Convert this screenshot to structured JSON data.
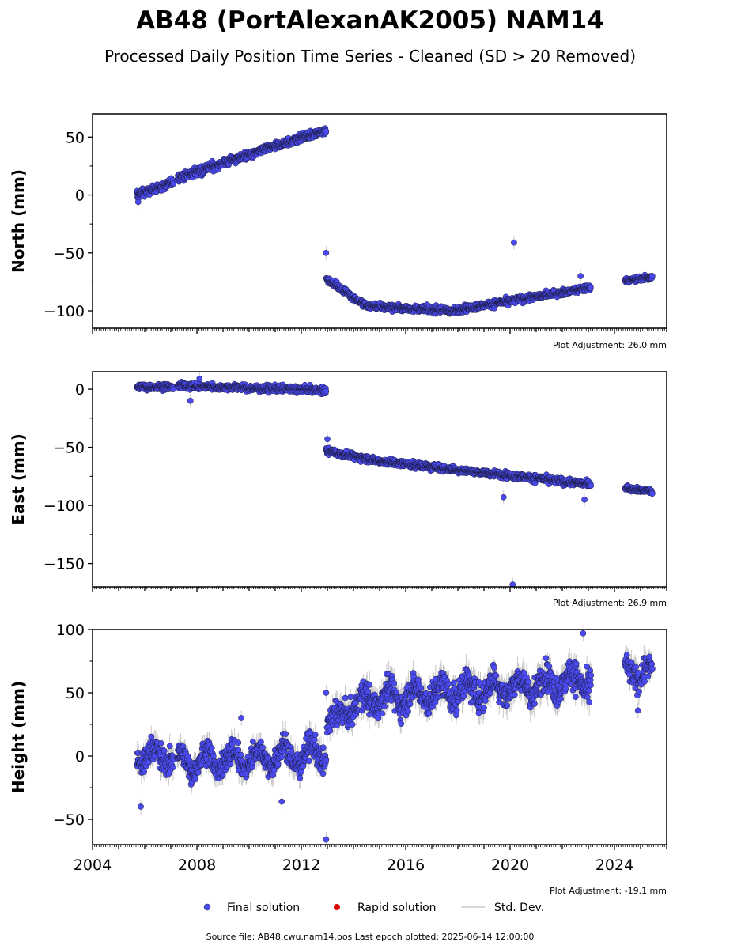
{
  "title": "AB48 (PortAlexanAK2005) NAM14",
  "subtitle": "Processed Daily Position Time Series - Cleaned (SD > 20 Removed)",
  "colors": {
    "final": "#4a4af0",
    "rapid": "#e00000",
    "std": "#c8c8c8",
    "edge": "#1a1a3a"
  },
  "legend": [
    {
      "label": "Final solution",
      "marker": "dot",
      "color": "#4a4af0"
    },
    {
      "label": "Rapid solution",
      "marker": "dot",
      "color": "#e00000"
    },
    {
      "label": "Std. Dev.",
      "marker": "line",
      "color": "#c8c8c8"
    }
  ],
  "footer": "Source file: AB48.cwu.nam14.pos  Last epoch plotted: 2025-06-14 12:00:00",
  "chart_data": [
    {
      "type": "scatter",
      "ylabel": "North (mm)",
      "xlim": [
        2004,
        2026
      ],
      "ylim": [
        -115,
        70
      ],
      "yticks": [
        50,
        0,
        -50,
        -100
      ],
      "xticks": [
        2004,
        2008,
        2012,
        2016,
        2020,
        2024
      ],
      "show_xtick_labels": false,
      "adjustment": "Plot Adjustment: 26.0 mm",
      "segments": [
        {
          "t0": 2005.7,
          "t1": 2007.1,
          "v0": 0,
          "v1": 11,
          "amp": 0,
          "noise": 2.5,
          "std": 2
        },
        {
          "t0": 2007.25,
          "t1": 2012.95,
          "v0": 15,
          "v1": 56,
          "amp": 0,
          "noise": 2.5,
          "std": 2
        },
        {
          "t0": 2012.95,
          "t1": 2014.5,
          "v0": -72,
          "v1": -96,
          "amp": 0,
          "noise": 2.0,
          "std": 2
        },
        {
          "t0": 2014.5,
          "t1": 2018.0,
          "v0": -96,
          "v1": -100,
          "amp": 0,
          "noise": 2.0,
          "std": 2
        },
        {
          "t0": 2018.0,
          "t1": 2023.1,
          "v0": -99,
          "v1": -80,
          "amp": 0,
          "noise": 2.0,
          "std": 2
        },
        {
          "t0": 2024.4,
          "t1": 2025.45,
          "v0": -74,
          "v1": -71,
          "amp": 0,
          "noise": 1.5,
          "std": 1.5
        }
      ],
      "outliers": [
        [
          2012.95,
          -50
        ],
        [
          2020.15,
          -41
        ],
        [
          2022.7,
          -70
        ],
        [
          2005.75,
          -6
        ]
      ]
    },
    {
      "type": "scatter",
      "ylabel": "East (mm)",
      "xlim": [
        2004,
        2026
      ],
      "ylim": [
        -170,
        15
      ],
      "yticks": [
        0,
        -50,
        -100,
        -150
      ],
      "xticks": [
        2004,
        2008,
        2012,
        2016,
        2020,
        2024
      ],
      "show_xtick_labels": false,
      "adjustment": "Plot Adjustment: 26.9 mm",
      "segments": [
        {
          "t0": 2005.7,
          "t1": 2007.1,
          "v0": 2,
          "v1": 2,
          "amp": 0,
          "noise": 2.0,
          "std": 2
        },
        {
          "t0": 2007.25,
          "t1": 2012.95,
          "v0": 3,
          "v1": -1,
          "amp": 0,
          "noise": 2.0,
          "std": 2
        },
        {
          "t0": 2012.95,
          "t1": 2015.0,
          "v0": -53,
          "v1": -62,
          "amp": 0,
          "noise": 2.0,
          "std": 2
        },
        {
          "t0": 2015.0,
          "t1": 2023.1,
          "v0": -62,
          "v1": -82,
          "amp": 0,
          "noise": 2.0,
          "std": 2
        },
        {
          "t0": 2024.4,
          "t1": 2025.45,
          "v0": -85,
          "v1": -88,
          "amp": 0,
          "noise": 1.5,
          "std": 1.5
        }
      ],
      "outliers": [
        [
          2013.0,
          -43
        ],
        [
          2007.75,
          -10
        ],
        [
          2008.1,
          9
        ],
        [
          2019.75,
          -93
        ],
        [
          2022.85,
          -95
        ],
        [
          2020.1,
          -168
        ]
      ]
    },
    {
      "type": "scatter",
      "ylabel": "Height (mm)",
      "xlim": [
        2004,
        2026
      ],
      "ylim": [
        -70,
        100
      ],
      "yticks": [
        100,
        50,
        0,
        -50
      ],
      "xticks": [
        2004,
        2008,
        2012,
        2016,
        2020,
        2024
      ],
      "xtick_labels": [
        "2004",
        "2008",
        "2012",
        "2016",
        "2020",
        "2024"
      ],
      "show_xtick_labels": true,
      "adjustment": "Plot Adjustment: -19.1 mm",
      "segments": [
        {
          "t0": 2005.7,
          "t1": 2007.1,
          "v0": 0,
          "v1": 0,
          "amp": 7,
          "noise": 7,
          "std": 7
        },
        {
          "t0": 2007.25,
          "t1": 2012.95,
          "v0": -5,
          "v1": 2,
          "amp": 8,
          "noise": 7,
          "std": 7
        },
        {
          "t0": 2012.95,
          "t1": 2014.5,
          "v0": 25,
          "v1": 45,
          "amp": 5,
          "noise": 7,
          "std": 7
        },
        {
          "t0": 2014.5,
          "t1": 2023.1,
          "v0": 45,
          "v1": 60,
          "amp": 7,
          "noise": 8,
          "std": 8
        },
        {
          "t0": 2024.4,
          "t1": 2025.45,
          "v0": 68,
          "v1": 65,
          "amp": 6,
          "noise": 7,
          "std": 7
        }
      ],
      "outliers": [
        [
          2005.85,
          -40
        ],
        [
          2011.25,
          -36
        ],
        [
          2012.95,
          -66
        ],
        [
          2012.95,
          50
        ],
        [
          2009.7,
          30
        ],
        [
          2022.8,
          97
        ],
        [
          2024.9,
          36
        ],
        [
          2018.8,
          34
        ]
      ]
    }
  ]
}
